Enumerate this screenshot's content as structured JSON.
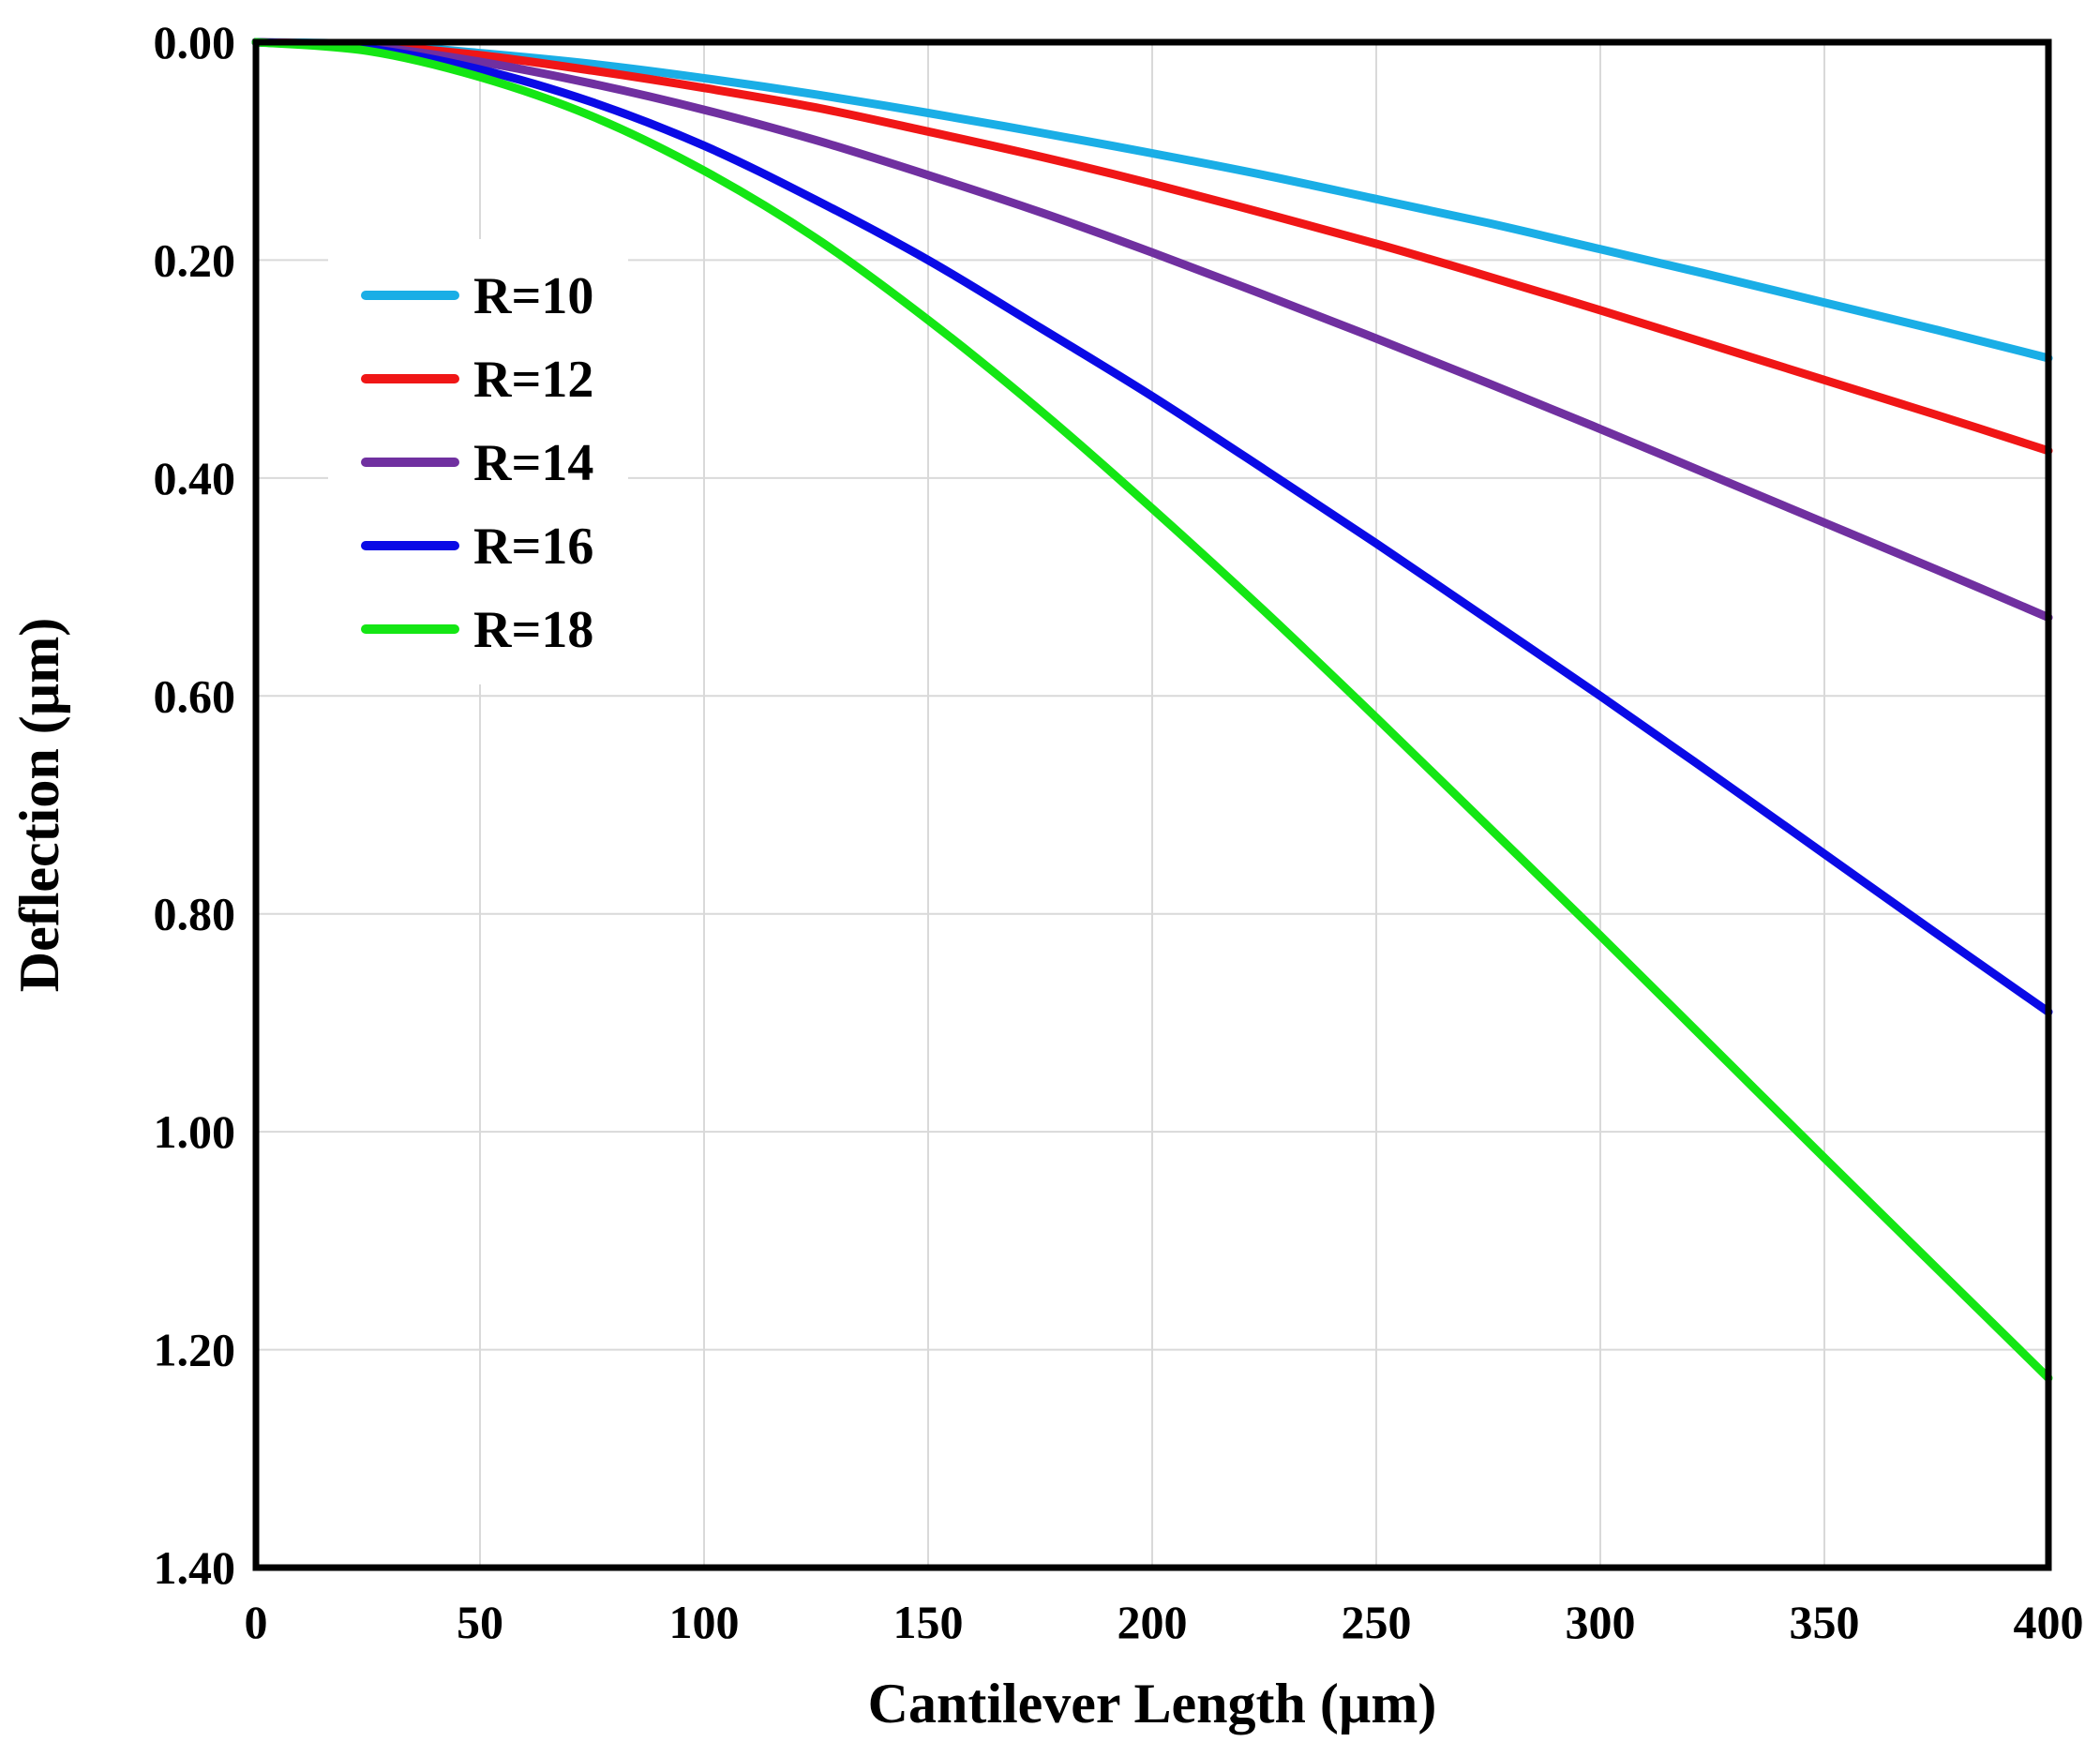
{
  "chart_data": {
    "type": "line",
    "title": "",
    "xlabel": "Cantilever Length (µm)",
    "ylabel": "Deflection (µm)",
    "xlim": [
      0,
      400
    ],
    "ylim": [
      1.4,
      0.0
    ],
    "y_inverted": true,
    "grid": true,
    "legend_position": "upper-left",
    "x_ticks": [
      "0",
      "50",
      "100",
      "150",
      "200",
      "250",
      "300",
      "350",
      "400"
    ],
    "x_tick_values": [
      0,
      50,
      100,
      150,
      200,
      250,
      300,
      350,
      400
    ],
    "y_ticks": [
      "0.00",
      "0.20",
      "0.40",
      "0.60",
      "0.80",
      "1.00",
      "1.20",
      "1.40"
    ],
    "y_tick_values": [
      0.0,
      0.2,
      0.4,
      0.6,
      0.8,
      1.0,
      1.2,
      1.4
    ],
    "x": [
      0,
      25,
      50,
      75,
      100,
      125,
      150,
      175,
      200,
      225,
      250,
      275,
      300,
      325,
      350,
      375,
      400
    ],
    "series": [
      {
        "name": "R=10",
        "color": "#1aaee6",
        "values": [
          0.0,
          0.002,
          0.01,
          0.02,
          0.033,
          0.048,
          0.065,
          0.083,
          0.102,
          0.122,
          0.144,
          0.166,
          0.19,
          0.214,
          0.239,
          0.264,
          0.29
        ]
      },
      {
        "name": "R=12",
        "color": "#f01616",
        "values": [
          0.0,
          0.003,
          0.012,
          0.026,
          0.042,
          0.06,
          0.082,
          0.105,
          0.13,
          0.157,
          0.185,
          0.215,
          0.246,
          0.278,
          0.31,
          0.342,
          0.375
        ]
      },
      {
        "name": "R=14",
        "color": "#7030a0",
        "values": [
          0.0,
          0.004,
          0.018,
          0.038,
          0.062,
          0.09,
          0.122,
          0.156,
          0.193,
          0.232,
          0.272,
          0.313,
          0.355,
          0.398,
          0.441,
          0.484,
          0.528
        ]
      },
      {
        "name": "R=16",
        "color": "#0a0ae6",
        "values": [
          0.0,
          0.006,
          0.025,
          0.055,
          0.095,
          0.145,
          0.2,
          0.262,
          0.325,
          0.392,
          0.46,
          0.53,
          0.6,
          0.672,
          0.745,
          0.818,
          0.89
        ]
      },
      {
        "name": "R=18",
        "color": "#14e614",
        "values": [
          0.0,
          0.008,
          0.032,
          0.068,
          0.118,
          0.18,
          0.255,
          0.338,
          0.428,
          0.522,
          0.62,
          0.72,
          0.82,
          0.922,
          1.024,
          1.125,
          1.226
        ]
      }
    ]
  }
}
